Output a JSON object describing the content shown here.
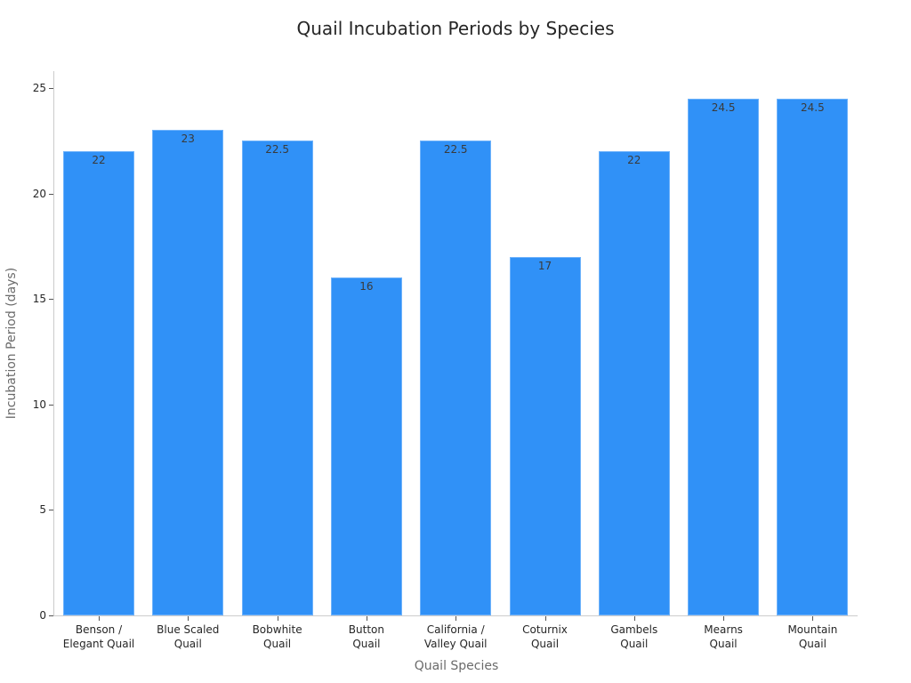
{
  "chart_data": {
    "type": "bar",
    "title": "Quail Incubation Periods by Species",
    "xlabel": "Quail Species",
    "ylabel": "Incubation Period (days)",
    "categories": [
      "Benson /\nElegant Quail",
      "Blue Scaled\nQuail",
      "Bobwhite\nQuail",
      "Button\nQuail",
      "California /\nValley Quail",
      "Coturnix\nQuail",
      "Gambels\nQuail",
      "Mearns\nQuail",
      "Mountain\nQuail"
    ],
    "values": [
      22,
      23,
      22.5,
      16,
      22.5,
      17,
      22,
      24.5,
      24.5
    ],
    "value_labels": [
      "22",
      "23",
      "22.5",
      "16",
      "22.5",
      "17",
      "22",
      "24.5",
      "24.5"
    ],
    "ylim": [
      0,
      25.8
    ],
    "yticks": [
      0,
      5,
      10,
      15,
      20,
      25
    ],
    "ytick_labels": [
      "0",
      "5",
      "10",
      "15",
      "20",
      "25"
    ],
    "grid": false,
    "legend": null,
    "bar_color": "#3091f7"
  }
}
